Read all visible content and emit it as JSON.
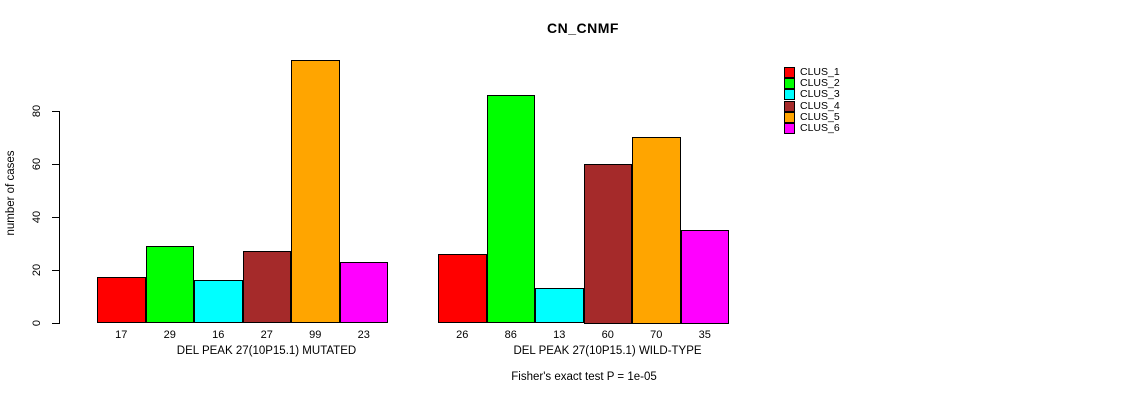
{
  "title": "CN_CNMF",
  "y_axis": {
    "label": "number of cases"
  },
  "footer": "Fisher's exact test P = 1e-05",
  "chart_data": {
    "type": "bar",
    "title": "CN_CNMF",
    "xlabel": "",
    "ylabel": "number of cases",
    "ylim": [
      0,
      80
    ],
    "yticks": [
      0,
      20,
      40,
      60,
      80
    ],
    "grid": false,
    "legend_position": "right",
    "categories": [
      "DEL PEAK 27(10P15.1) MUTATED",
      "DEL PEAK 27(10P15.1) WILD-TYPE"
    ],
    "series": [
      {
        "name": "CLUS_1",
        "color": "#ff0000",
        "values": [
          17,
          26
        ]
      },
      {
        "name": "CLUS_2",
        "color": "#00ff00",
        "values": [
          29,
          86
        ]
      },
      {
        "name": "CLUS_3",
        "color": "#00ffff",
        "values": [
          16,
          13
        ]
      },
      {
        "name": "CLUS_4",
        "color": "#a52a2a",
        "values": [
          27,
          60
        ]
      },
      {
        "name": "CLUS_5",
        "color": "#ffa500",
        "values": [
          99,
          70
        ]
      },
      {
        "name": "CLUS_6",
        "color": "#ff00ff",
        "values": [
          23,
          35
        ]
      }
    ],
    "bar_value_labels": [
      [
        17,
        29,
        16,
        27,
        99,
        23
      ],
      [
        26,
        86,
        13,
        60,
        70,
        35
      ]
    ],
    "annotation": "Fisher's exact test P = 1e-05"
  }
}
